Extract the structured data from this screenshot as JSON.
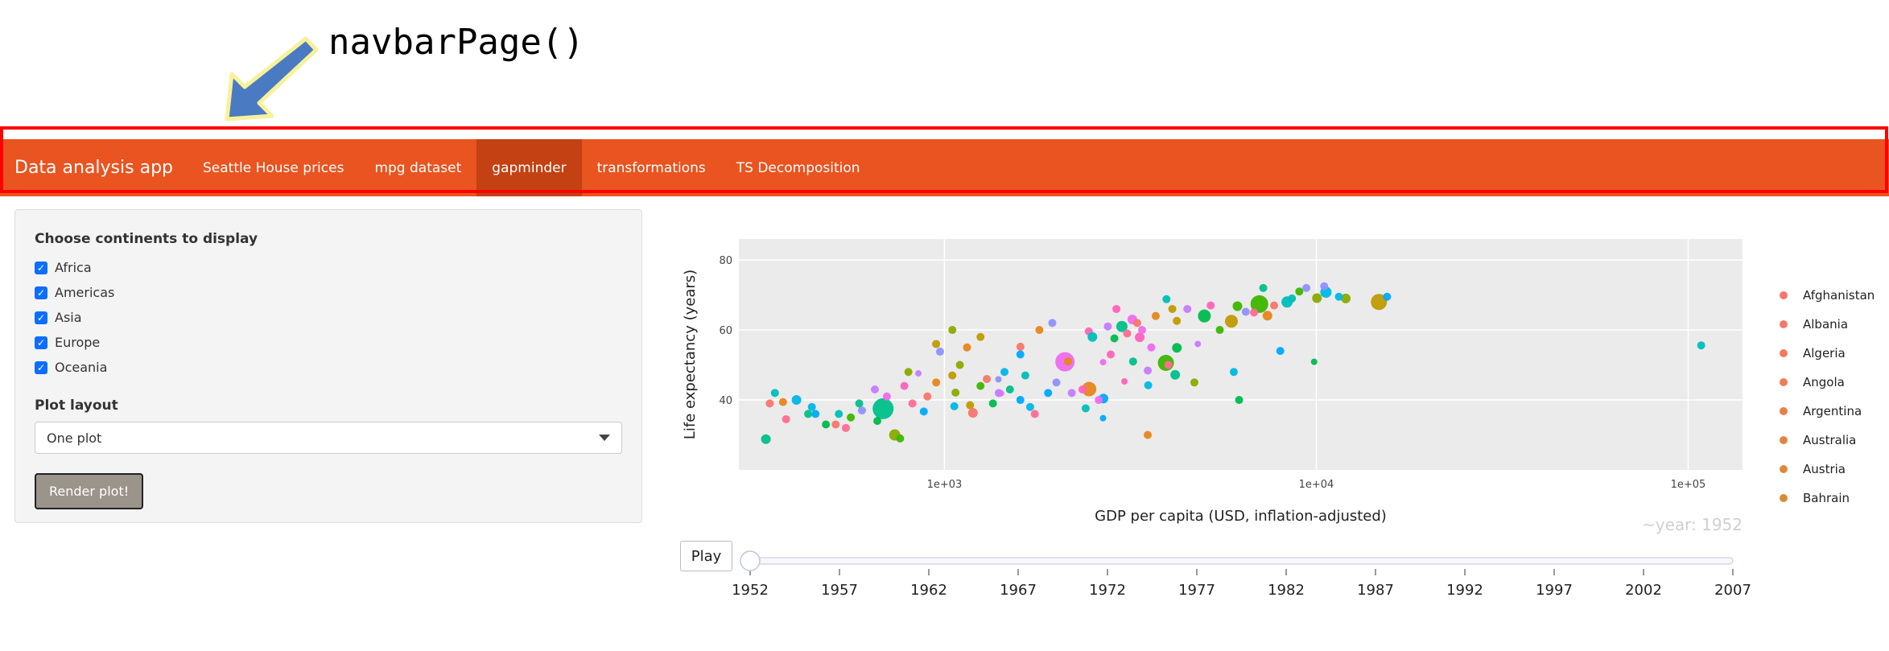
{
  "annotation": {
    "title": "navbarPage()"
  },
  "navbar": {
    "brand": "Data analysis app",
    "tabs": [
      "Seattle House prices",
      "mpg dataset",
      "gapminder",
      "transformations",
      "TS Decomposition"
    ],
    "active_tab": "gapminder",
    "color": "#E95420",
    "active_color": "#c34113",
    "highlight_color": "#ff0000"
  },
  "sidebar": {
    "continents_label": "Choose continents to display",
    "continents": [
      "Africa",
      "Americas",
      "Asia",
      "Europe",
      "Oceania"
    ],
    "checked": [
      true,
      true,
      true,
      true,
      true
    ],
    "layout_label": "Plot layout",
    "layout_value": "One plot",
    "render_button": "Render plot!"
  },
  "animation": {
    "play_label": "Play",
    "frame_label": "~year: 1952",
    "years": [
      "1952",
      "1957",
      "1962",
      "1967",
      "1972",
      "1977",
      "1982",
      "1987",
      "1992",
      "1997",
      "2002",
      "2007"
    ],
    "current_year": "1952"
  },
  "chart_data": {
    "type": "scatter",
    "xlabel": "GDP per capita (USD, inflation-adjusted)",
    "ylabel": "Life expectancy (years)",
    "x_scale": "log",
    "xlim": [
      280,
      140000
    ],
    "ylim": [
      20,
      86
    ],
    "x_ticks": [
      1000,
      10000,
      100000
    ],
    "x_tick_labels": [
      "1e+03",
      "1e+04",
      "1e+05"
    ],
    "y_ticks": [
      40,
      60,
      80
    ],
    "y_tick_labels": [
      "40",
      "60",
      "80"
    ],
    "grid": true,
    "legend": {
      "placement": "right",
      "entries": [
        "Afghanistan",
        "Albania",
        "Algeria",
        "Angola",
        "Argentina",
        "Australia",
        "Austria",
        "Bahrain"
      ],
      "colors": [
        "#F8766D",
        "#F7786B",
        "#F27A5A",
        "#EF7C54",
        "#E8804A",
        "#E38542",
        "#DC8A3A",
        "#D58F31"
      ]
    },
    "palette": [
      "#F8766D",
      "#E7861B",
      "#C09B00",
      "#8AAB00",
      "#3DB600",
      "#00BB4E",
      "#00C089",
      "#00BFB8",
      "#00B8E5",
      "#00A9FF",
      "#8F91FF",
      "#C77CFF",
      "#EE6BEF",
      "#FF62BC",
      "#FF6C91"
    ],
    "points": [
      {
        "x": 331,
        "y": 28.8,
        "c": 6,
        "s": 6
      },
      {
        "x": 1601,
        "y": 55.2,
        "c": 0,
        "s": 5
      },
      {
        "x": 2449,
        "y": 43.1,
        "c": 1,
        "s": 9
      },
      {
        "x": 3521,
        "y": 30.0,
        "c": 1,
        "s": 5
      },
      {
        "x": 5911,
        "y": 62.5,
        "c": 2,
        "s": 8
      },
      {
        "x": 10040,
        "y": 69.1,
        "c": 3,
        "s": 6
      },
      {
        "x": 6137,
        "y": 66.8,
        "c": 4,
        "s": 6
      },
      {
        "x": 9867,
        "y": 50.9,
        "c": 5,
        "s": 4
      },
      {
        "x": 684,
        "y": 37.5,
        "c": 6,
        "s": 13
      },
      {
        "x": 8343,
        "y": 68.0,
        "c": 7,
        "s": 7
      },
      {
        "x": 1063,
        "y": 38.2,
        "c": 8,
        "s": 5
      },
      {
        "x": 2677,
        "y": 40.4,
        "c": 9,
        "s": 6
      },
      {
        "x": 973,
        "y": 53.8,
        "c": 10,
        "s": 5
      },
      {
        "x": 851,
        "y": 47.6,
        "c": 11,
        "s": 4
      },
      {
        "x": 2109,
        "y": 50.9,
        "c": 12,
        "s": 12
      },
      {
        "x": 2444,
        "y": 59.6,
        "c": 13,
        "s": 5
      },
      {
        "x": 543,
        "y": 32.0,
        "c": 14,
        "s": 5
      },
      {
        "x": 339,
        "y": 39.0,
        "c": 0,
        "s": 5
      },
      {
        "x": 368,
        "y": 39.4,
        "c": 1,
        "s": 5
      },
      {
        "x": 1172,
        "y": 38.5,
        "c": 2,
        "s": 5
      },
      {
        "x": 1071,
        "y": 42.1,
        "c": 3,
        "s": 5
      },
      {
        "x": 3940,
        "y": 50.6,
        "c": 4,
        "s": 10
      },
      {
        "x": 2864,
        "y": 57.6,
        "c": 5,
        "s": 5
      },
      {
        "x": 4173,
        "y": 47.2,
        "c": 6,
        "s": 6
      },
      {
        "x": 3954,
        "y": 68.8,
        "c": 7,
        "s": 5
      },
      {
        "x": 10614,
        "y": 70.8,
        "c": 8,
        "s": 7
      },
      {
        "x": 2670,
        "y": 34.8,
        "c": 9,
        "s": 4
      },
      {
        "x": 1397,
        "y": 45.9,
        "c": 10,
        "s": 4
      },
      {
        "x": 3522,
        "y": 48.4,
        "c": 11,
        "s": 5
      },
      {
        "x": 1419,
        "y": 41.9,
        "c": 12,
        "s": 4
      },
      {
        "x": 3048,
        "y": 45.3,
        "c": 13,
        "s": 4
      },
      {
        "x": 375,
        "y": 34.5,
        "c": 14,
        "s": 5
      },
      {
        "x": 1193,
        "y": 36.3,
        "c": 0,
        "s": 6
      },
      {
        "x": 7390,
        "y": 64.1,
        "c": 1,
        "s": 6
      },
      {
        "x": 4215,
        "y": 62.6,
        "c": 2,
        "s": 5
      },
      {
        "x": 735,
        "y": 30.0,
        "c": 3,
        "s": 7
      },
      {
        "x": 7029,
        "y": 67.4,
        "c": 4,
        "s": 11
      },
      {
        "x": 4218,
        "y": 54.9,
        "c": 5,
        "s": 6
      },
      {
        "x": 3216,
        "y": 51.0,
        "c": 6,
        "s": 5
      },
      {
        "x": 2398,
        "y": 37.6,
        "c": 7,
        "s": 5
      },
      {
        "x": 3531,
        "y": 44.2,
        "c": 8,
        "s": 5
      },
      {
        "x": 880,
        "y": 36.7,
        "c": 9,
        "s": 5
      },
      {
        "x": 6460,
        "y": 65.2,
        "c": 10,
        "s": 5
      },
      {
        "x": 1400,
        "y": 42.0,
        "c": 11,
        "s": 5
      },
      {
        "x": 2670,
        "y": 50.8,
        "c": 12,
        "s": 4
      },
      {
        "x": 3350,
        "y": 57.9,
        "c": 13,
        "s": 6
      },
      {
        "x": 4000,
        "y": 50.0,
        "c": 14,
        "s": 5
      },
      {
        "x": 510,
        "y": 33.0,
        "c": 0,
        "s": 5
      },
      {
        "x": 1800,
        "y": 60.0,
        "c": 1,
        "s": 5
      },
      {
        "x": 14734,
        "y": 68.0,
        "c": 2,
        "s": 10
      },
      {
        "x": 12000,
        "y": 69.0,
        "c": 3,
        "s": 6
      },
      {
        "x": 9000,
        "y": 71.0,
        "c": 4,
        "s": 5
      },
      {
        "x": 5000,
        "y": 64.0,
        "c": 5,
        "s": 8
      },
      {
        "x": 3000,
        "y": 61.0,
        "c": 6,
        "s": 7
      },
      {
        "x": 2500,
        "y": 58.0,
        "c": 7,
        "s": 6
      },
      {
        "x": 6000,
        "y": 48.0,
        "c": 8,
        "s": 5
      },
      {
        "x": 8000,
        "y": 54.0,
        "c": 9,
        "s": 5
      },
      {
        "x": 10500,
        "y": 72.5,
        "c": 10,
        "s": 5
      },
      {
        "x": 4500,
        "y": 66.0,
        "c": 11,
        "s": 5
      },
      {
        "x": 3200,
        "y": 63.0,
        "c": 12,
        "s": 6
      },
      {
        "x": 2900,
        "y": 66.0,
        "c": 13,
        "s": 5
      },
      {
        "x": 108382,
        "y": 55.6,
        "c": 7,
        "s": 5
      },
      {
        "x": 400,
        "y": 40.0,
        "c": 8,
        "s": 6
      },
      {
        "x": 450,
        "y": 36.0,
        "c": 9,
        "s": 5
      },
      {
        "x": 600,
        "y": 37.0,
        "c": 10,
        "s": 5
      },
      {
        "x": 650,
        "y": 43.0,
        "c": 11,
        "s": 5
      },
      {
        "x": 700,
        "y": 41.0,
        "c": 12,
        "s": 5
      },
      {
        "x": 780,
        "y": 44.0,
        "c": 13,
        "s": 5
      },
      {
        "x": 820,
        "y": 39.0,
        "c": 14,
        "s": 5
      },
      {
        "x": 900,
        "y": 41.0,
        "c": 0,
        "s": 5
      },
      {
        "x": 950,
        "y": 45.0,
        "c": 1,
        "s": 5
      },
      {
        "x": 1050,
        "y": 47.0,
        "c": 2,
        "s": 5
      },
      {
        "x": 1100,
        "y": 50.0,
        "c": 3,
        "s": 5
      },
      {
        "x": 1250,
        "y": 44.0,
        "c": 4,
        "s": 5
      },
      {
        "x": 1350,
        "y": 39.0,
        "c": 5,
        "s": 5
      },
      {
        "x": 1500,
        "y": 43.0,
        "c": 6,
        "s": 5
      },
      {
        "x": 1650,
        "y": 47.0,
        "c": 7,
        "s": 5
      },
      {
        "x": 1700,
        "y": 38.0,
        "c": 8,
        "s": 5
      },
      {
        "x": 1900,
        "y": 42.0,
        "c": 9,
        "s": 5
      },
      {
        "x": 2000,
        "y": 45.0,
        "c": 10,
        "s": 5
      },
      {
        "x": 2200,
        "y": 42.0,
        "c": 11,
        "s": 5
      },
      {
        "x": 2600,
        "y": 40.0,
        "c": 12,
        "s": 5
      },
      {
        "x": 2800,
        "y": 53.0,
        "c": 13,
        "s": 5
      },
      {
        "x": 3100,
        "y": 59.0,
        "c": 14,
        "s": 5
      },
      {
        "x": 3300,
        "y": 62.0,
        "c": 0,
        "s": 5
      },
      {
        "x": 3700,
        "y": 64.0,
        "c": 1,
        "s": 5
      },
      {
        "x": 4100,
        "y": 66.0,
        "c": 2,
        "s": 5
      },
      {
        "x": 4700,
        "y": 45.0,
        "c": 3,
        "s": 5
      },
      {
        "x": 5500,
        "y": 60.0,
        "c": 4,
        "s": 5
      },
      {
        "x": 6200,
        "y": 40.0,
        "c": 5,
        "s": 5
      },
      {
        "x": 7200,
        "y": 72.0,
        "c": 6,
        "s": 5
      },
      {
        "x": 8600,
        "y": 69.0,
        "c": 7,
        "s": 5
      },
      {
        "x": 11500,
        "y": 69.5,
        "c": 8,
        "s": 5
      },
      {
        "x": 15500,
        "y": 69.5,
        "c": 9,
        "s": 5
      },
      {
        "x": 9400,
        "y": 72.0,
        "c": 10,
        "s": 5
      },
      {
        "x": 4800,
        "y": 56.0,
        "c": 11,
        "s": 4
      },
      {
        "x": 3600,
        "y": 55.0,
        "c": 12,
        "s": 5
      },
      {
        "x": 2350,
        "y": 43.0,
        "c": 13,
        "s": 5
      },
      {
        "x": 1750,
        "y": 36.0,
        "c": 14,
        "s": 5
      },
      {
        "x": 1300,
        "y": 46.0,
        "c": 0,
        "s": 5
      },
      {
        "x": 1150,
        "y": 55.0,
        "c": 1,
        "s": 5
      },
      {
        "x": 950,
        "y": 56.0,
        "c": 2,
        "s": 5
      },
      {
        "x": 800,
        "y": 48.0,
        "c": 3,
        "s": 5
      },
      {
        "x": 560,
        "y": 35.0,
        "c": 4,
        "s": 5
      },
      {
        "x": 480,
        "y": 33.0,
        "c": 5,
        "s": 5
      },
      {
        "x": 430,
        "y": 36.0,
        "c": 6,
        "s": 5
      },
      {
        "x": 350,
        "y": 42.0,
        "c": 7,
        "s": 5
      },
      {
        "x": 1450,
        "y": 48.0,
        "c": 8,
        "s": 5
      },
      {
        "x": 1600,
        "y": 53.0,
        "c": 9,
        "s": 5
      },
      {
        "x": 1950,
        "y": 62.0,
        "c": 10,
        "s": 5
      },
      {
        "x": 2750,
        "y": 61.0,
        "c": 11,
        "s": 5
      },
      {
        "x": 3400,
        "y": 60.0,
        "c": 12,
        "s": 5
      },
      {
        "x": 5200,
        "y": 67.0,
        "c": 13,
        "s": 5
      },
      {
        "x": 6800,
        "y": 65.0,
        "c": 14,
        "s": 5
      },
      {
        "x": 7700,
        "y": 67.0,
        "c": 0,
        "s": 5
      },
      {
        "x": 2150,
        "y": 51.0,
        "c": 1,
        "s": 5
      },
      {
        "x": 1250,
        "y": 58.0,
        "c": 2,
        "s": 5
      },
      {
        "x": 1050,
        "y": 60.0,
        "c": 3,
        "s": 5
      },
      {
        "x": 760,
        "y": 29.0,
        "c": 4,
        "s": 5
      },
      {
        "x": 660,
        "y": 34.0,
        "c": 5,
        "s": 5
      },
      {
        "x": 590,
        "y": 39.0,
        "c": 6,
        "s": 5
      },
      {
        "x": 520,
        "y": 36.0,
        "c": 7,
        "s": 5
      },
      {
        "x": 440,
        "y": 38.0,
        "c": 8,
        "s": 5
      },
      {
        "x": 1600,
        "y": 40.0,
        "c": 9,
        "s": 5
      }
    ]
  }
}
